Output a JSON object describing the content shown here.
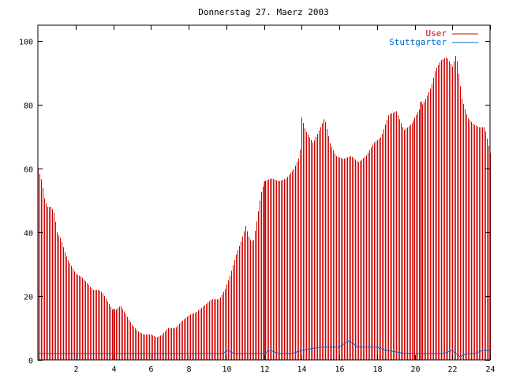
{
  "chart_data": {
    "type": "bar",
    "title": "Donnerstag 27. Maerz 2003",
    "xlabel": "",
    "ylabel": "",
    "xlim": [
      0,
      24
    ],
    "ylim": [
      0,
      105
    ],
    "x_ticks": [
      2,
      4,
      6,
      8,
      10,
      12,
      14,
      16,
      18,
      20,
      22,
      24
    ],
    "y_ticks": [
      0,
      20,
      40,
      60,
      80,
      100
    ],
    "grid": false,
    "legend_position": "top-right",
    "series": [
      {
        "name": "User",
        "color": "#cc0000",
        "style": "impulses",
        "keypoints": [
          [
            0.0,
            60
          ],
          [
            0.2,
            56
          ],
          [
            0.35,
            50
          ],
          [
            0.5,
            48
          ],
          [
            0.7,
            48
          ],
          [
            0.85,
            46
          ],
          [
            1.0,
            40
          ],
          [
            1.2,
            38
          ],
          [
            1.4,
            34
          ],
          [
            1.6,
            31
          ],
          [
            1.8,
            29
          ],
          [
            2.0,
            27
          ],
          [
            2.3,
            26
          ],
          [
            2.6,
            24
          ],
          [
            2.9,
            22
          ],
          [
            3.2,
            22
          ],
          [
            3.4,
            21
          ],
          [
            3.6,
            19
          ],
          [
            3.8,
            17
          ],
          [
            4.0,
            15
          ],
          [
            4.2,
            16
          ],
          [
            4.4,
            17
          ],
          [
            4.6,
            15
          ],
          [
            4.8,
            13
          ],
          [
            5.0,
            11
          ],
          [
            5.3,
            9
          ],
          [
            5.6,
            8
          ],
          [
            6.0,
            8
          ],
          [
            6.3,
            7
          ],
          [
            6.6,
            8
          ],
          [
            6.9,
            10
          ],
          [
            7.3,
            10
          ],
          [
            7.6,
            12
          ],
          [
            8.0,
            14
          ],
          [
            8.4,
            15
          ],
          [
            8.8,
            17
          ],
          [
            9.2,
            19
          ],
          [
            9.6,
            19
          ],
          [
            9.9,
            22
          ],
          [
            10.2,
            27
          ],
          [
            10.5,
            33
          ],
          [
            10.8,
            38
          ],
          [
            11.0,
            42
          ],
          [
            11.2,
            38
          ],
          [
            11.4,
            37
          ],
          [
            11.6,
            44
          ],
          [
            11.8,
            52
          ],
          [
            12.0,
            56
          ],
          [
            12.4,
            57
          ],
          [
            12.8,
            56
          ],
          [
            13.2,
            57
          ],
          [
            13.6,
            60
          ],
          [
            13.9,
            64
          ],
          [
            14.0,
            76
          ],
          [
            14.2,
            72
          ],
          [
            14.6,
            68
          ],
          [
            15.0,
            73
          ],
          [
            15.2,
            76
          ],
          [
            15.5,
            68
          ],
          [
            15.8,
            64
          ],
          [
            16.2,
            63
          ],
          [
            16.6,
            64
          ],
          [
            17.0,
            62
          ],
          [
            17.4,
            64
          ],
          [
            17.8,
            68
          ],
          [
            18.2,
            70
          ],
          [
            18.6,
            77
          ],
          [
            19.0,
            78
          ],
          [
            19.4,
            72
          ],
          [
            19.8,
            74
          ],
          [
            20.2,
            78
          ],
          [
            20.6,
            82
          ],
          [
            20.9,
            86
          ],
          [
            21.1,
            91
          ],
          [
            21.4,
            94
          ],
          [
            21.7,
            95
          ],
          [
            22.0,
            92
          ],
          [
            22.2,
            96
          ],
          [
            22.5,
            82
          ],
          [
            22.8,
            76
          ],
          [
            23.1,
            74
          ],
          [
            23.4,
            73
          ],
          [
            23.7,
            73
          ],
          [
            24.0,
            65
          ]
        ],
        "spikes": [
          [
            4.0,
            16
          ],
          [
            12.0,
            56
          ],
          [
            20.3,
            81
          ]
        ]
      },
      {
        "name": "Stuttgarter",
        "color": "#0066cc",
        "style": "line",
        "keypoints": [
          [
            0.0,
            2
          ],
          [
            2.0,
            2
          ],
          [
            4.0,
            2
          ],
          [
            6.0,
            2
          ],
          [
            8.0,
            2
          ],
          [
            9.8,
            2
          ],
          [
            10.1,
            3
          ],
          [
            10.4,
            2
          ],
          [
            12.0,
            2
          ],
          [
            12.3,
            3
          ],
          [
            12.8,
            2
          ],
          [
            13.5,
            2
          ],
          [
            14.0,
            3
          ],
          [
            15.0,
            4
          ],
          [
            16.0,
            4
          ],
          [
            16.5,
            6
          ],
          [
            17.0,
            4
          ],
          [
            18.0,
            4
          ],
          [
            18.5,
            3
          ],
          [
            19.5,
            2
          ],
          [
            20.5,
            2
          ],
          [
            21.5,
            2
          ],
          [
            22.0,
            3
          ],
          [
            22.4,
            1
          ],
          [
            22.8,
            2
          ],
          [
            23.2,
            2
          ],
          [
            23.6,
            3
          ],
          [
            24.0,
            3
          ]
        ]
      }
    ]
  }
}
